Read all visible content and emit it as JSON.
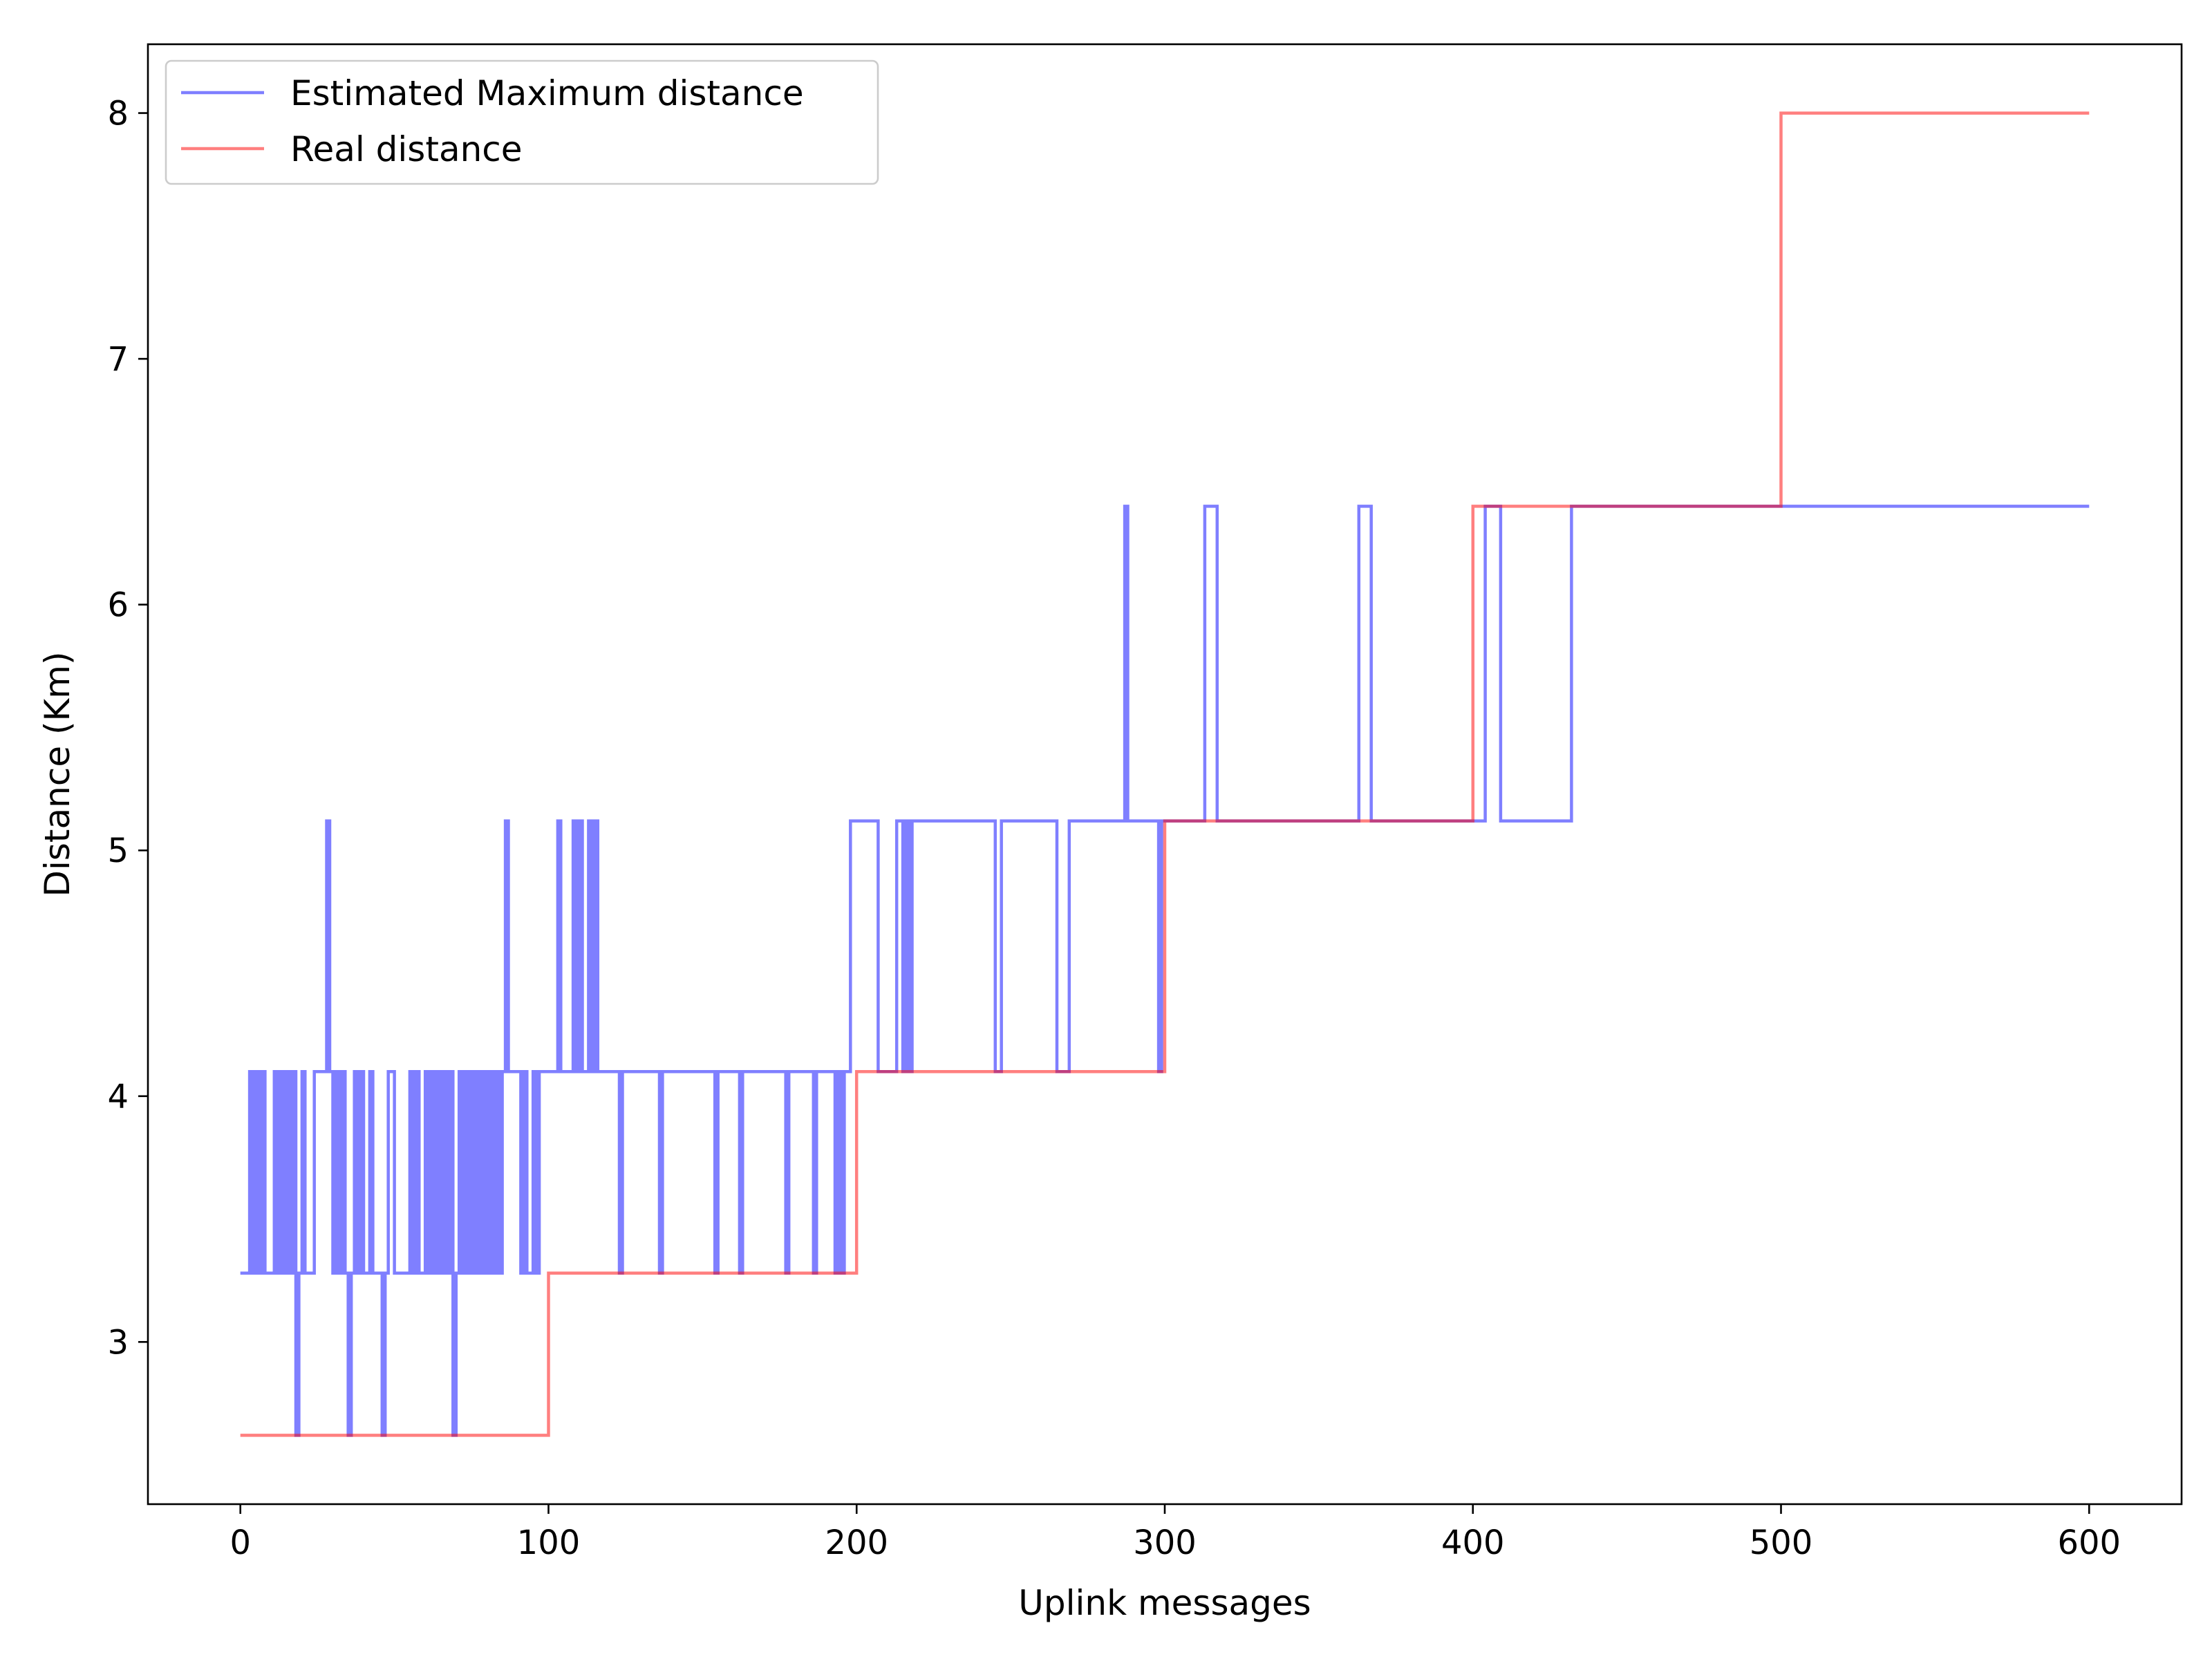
{
  "chart_data": {
    "type": "line",
    "title": "",
    "xlabel": "Uplink messages",
    "ylabel": "Distance (Km)",
    "xlim": [
      -30,
      630
    ],
    "ylim": [
      2.34,
      8.28
    ],
    "xticks": [
      0,
      100,
      200,
      300,
      400,
      500,
      600
    ],
    "yticks": [
      3,
      4,
      5,
      6,
      7,
      8
    ],
    "grid": false,
    "legend_position": "top-left",
    "series": [
      {
        "name": "Estimated Maximum distance",
        "color": "#0000ff",
        "opacity": 0.5,
        "steps": [
          [
            0,
            3.28
          ],
          [
            3,
            4.1
          ],
          [
            4,
            3.28
          ],
          [
            5,
            4.1
          ],
          [
            6,
            3.28
          ],
          [
            7,
            4.1
          ],
          [
            8,
            3.28
          ],
          [
            10,
            3.28
          ],
          [
            11,
            4.1
          ],
          [
            12,
            3.28
          ],
          [
            13,
            4.1
          ],
          [
            14,
            3.28
          ],
          [
            15,
            4.1
          ],
          [
            16,
            3.28
          ],
          [
            17,
            4.1
          ],
          [
            18,
            2.62
          ],
          [
            19,
            3.28
          ],
          [
            20,
            4.1
          ],
          [
            21,
            3.28
          ],
          [
            23,
            3.28
          ],
          [
            24,
            4.1
          ],
          [
            27,
            4.1
          ],
          [
            28,
            5.12
          ],
          [
            29,
            4.1
          ],
          [
            30,
            3.28
          ],
          [
            31,
            4.1
          ],
          [
            32,
            3.28
          ],
          [
            33,
            4.1
          ],
          [
            34,
            3.28
          ],
          [
            35,
            2.62
          ],
          [
            36,
            3.28
          ],
          [
            37,
            4.1
          ],
          [
            38,
            3.28
          ],
          [
            39,
            4.1
          ],
          [
            40,
            3.28
          ],
          [
            42,
            4.1
          ],
          [
            43,
            3.28
          ],
          [
            45,
            3.28
          ],
          [
            46,
            2.62
          ],
          [
            47,
            3.28
          ],
          [
            48,
            4.1
          ],
          [
            49,
            4.1
          ],
          [
            50,
            3.28
          ],
          [
            52,
            3.28
          ],
          [
            55,
            4.1
          ],
          [
            56,
            3.28
          ],
          [
            57,
            4.1
          ],
          [
            58,
            3.28
          ],
          [
            60,
            4.1
          ],
          [
            61,
            3.28
          ],
          [
            62,
            4.1
          ],
          [
            63,
            3.28
          ],
          [
            64,
            4.1
          ],
          [
            65,
            3.28
          ],
          [
            66,
            4.1
          ],
          [
            67,
            3.28
          ],
          [
            68,
            4.1
          ],
          [
            69,
            2.62
          ],
          [
            70,
            3.28
          ],
          [
            71,
            4.1
          ],
          [
            72,
            3.28
          ],
          [
            73,
            4.1
          ],
          [
            74,
            3.28
          ],
          [
            75,
            4.1
          ],
          [
            76,
            3.28
          ],
          [
            77,
            4.1
          ],
          [
            78,
            3.28
          ],
          [
            79,
            4.1
          ],
          [
            80,
            3.28
          ],
          [
            81,
            4.1
          ],
          [
            82,
            3.28
          ],
          [
            83,
            4.1
          ],
          [
            84,
            3.28
          ],
          [
            85,
            4.1
          ],
          [
            86,
            5.12
          ],
          [
            87,
            4.1
          ],
          [
            88,
            4.1
          ],
          [
            90,
            4.1
          ],
          [
            91,
            3.28
          ],
          [
            92,
            4.1
          ],
          [
            93,
            3.28
          ],
          [
            95,
            4.1
          ],
          [
            96,
            3.28
          ],
          [
            97,
            4.1
          ],
          [
            98,
            4.1
          ],
          [
            100,
            4.1
          ],
          [
            103,
            5.12
          ],
          [
            104,
            4.1
          ],
          [
            106,
            4.1
          ],
          [
            108,
            5.12
          ],
          [
            109,
            4.1
          ],
          [
            110,
            5.12
          ],
          [
            111,
            4.1
          ],
          [
            113,
            5.12
          ],
          [
            114,
            4.1
          ],
          [
            115,
            5.12
          ],
          [
            116,
            4.1
          ],
          [
            122,
            4.1
          ],
          [
            123,
            3.28
          ],
          [
            124,
            4.1
          ],
          [
            135,
            4.1
          ],
          [
            136,
            3.28
          ],
          [
            137,
            4.1
          ],
          [
            153,
            4.1
          ],
          [
            154,
            3.28
          ],
          [
            155,
            4.1
          ],
          [
            161,
            4.1
          ],
          [
            162,
            3.28
          ],
          [
            163,
            4.1
          ],
          [
            176,
            4.1
          ],
          [
            177,
            3.28
          ],
          [
            178,
            4.1
          ],
          [
            185,
            4.1
          ],
          [
            186,
            3.28
          ],
          [
            187,
            4.1
          ],
          [
            192,
            4.1
          ],
          [
            193,
            3.28
          ],
          [
            194,
            4.1
          ],
          [
            195,
            3.28
          ],
          [
            196,
            4.1
          ],
          [
            198,
            5.12
          ],
          [
            207,
            4.1
          ],
          [
            213,
            5.12
          ],
          [
            215,
            4.1
          ],
          [
            216,
            5.12
          ],
          [
            217,
            4.1
          ],
          [
            218,
            5.12
          ],
          [
            245,
            4.1
          ],
          [
            247,
            5.12
          ],
          [
            265,
            4.1
          ],
          [
            269,
            5.12
          ],
          [
            287,
            6.4
          ],
          [
            288,
            5.12
          ],
          [
            297,
            5.12
          ],
          [
            298,
            4.1
          ],
          [
            299,
            5.12
          ],
          [
            313,
            6.4
          ],
          [
            317,
            5.12
          ],
          [
            363,
            6.4
          ],
          [
            367,
            5.12
          ],
          [
            404,
            6.4
          ],
          [
            409,
            5.12
          ],
          [
            432,
            6.4
          ],
          [
            600,
            6.4
          ]
        ]
      },
      {
        "name": "Real distance",
        "color": "#ff0000",
        "opacity": 0.5,
        "steps": [
          [
            0,
            2.62
          ],
          [
            100,
            3.28
          ],
          [
            200,
            4.1
          ],
          [
            300,
            5.12
          ],
          [
            400,
            6.4
          ],
          [
            500,
            8.0
          ],
          [
            600,
            8.0
          ]
        ]
      }
    ]
  }
}
